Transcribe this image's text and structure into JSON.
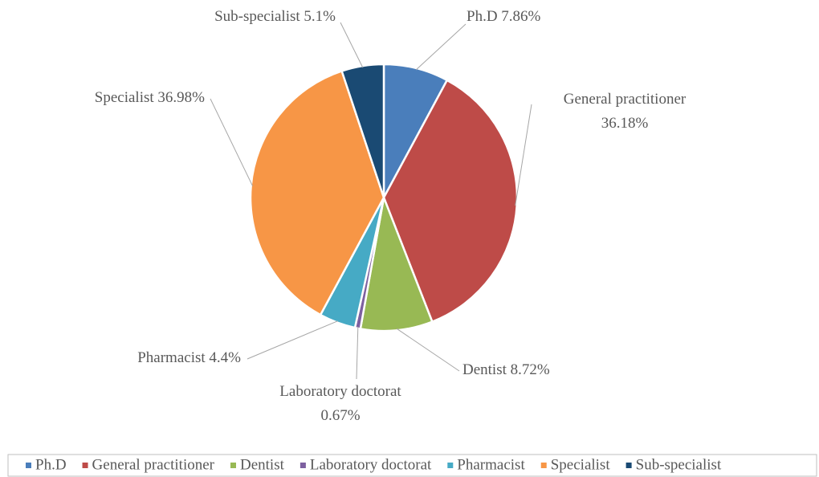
{
  "chart_data": {
    "type": "pie",
    "categories": [
      "Ph.D",
      "General practitioner",
      "Dentist",
      "Laboratory doctorat",
      "Pharmacist",
      "Specialist",
      "Sub-specialist"
    ],
    "values": [
      7.86,
      36.18,
      8.72,
      0.67,
      4.4,
      36.98,
      5.1
    ],
    "value_labels": [
      "7.86%",
      "36.18%",
      "8.72%",
      "0.67%",
      "4.4%",
      "36.98%",
      "5.1%"
    ],
    "colors": [
      "#4a7ebb",
      "#be4b48",
      "#98b954",
      "#7d60a0",
      "#46aac5",
      "#f79646",
      "#1a4a73"
    ],
    "legend": "bottom"
  }
}
